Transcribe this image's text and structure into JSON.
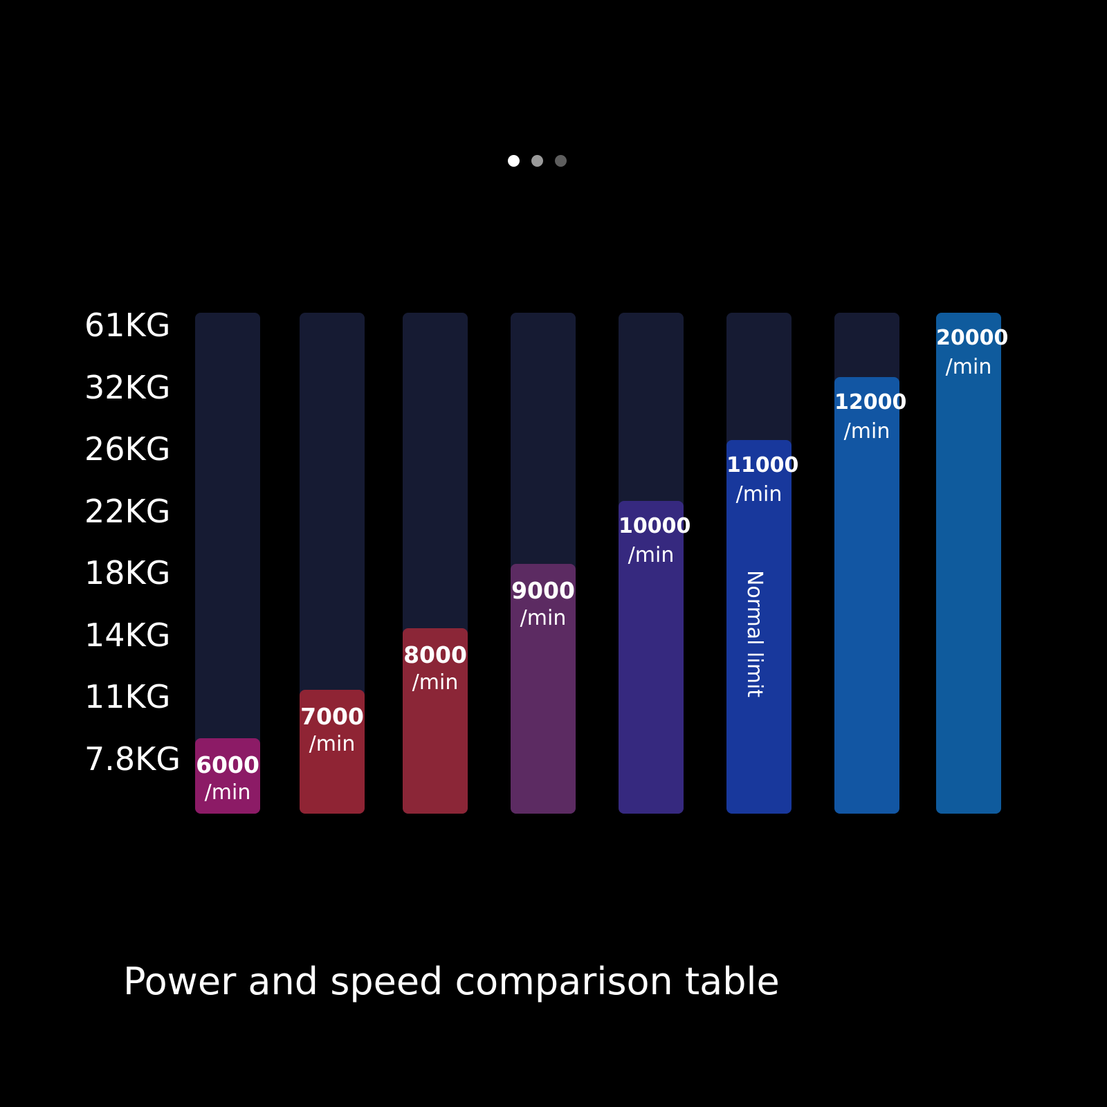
{
  "pager": {
    "dots": [
      {
        "name": "pager-dot-1",
        "color": "#ffffff"
      },
      {
        "name": "pager-dot-2",
        "color": "#9a9a9a"
      },
      {
        "name": "pager-dot-3",
        "color": "#5e5e5e"
      }
    ]
  },
  "caption": "Power and speed comparison table",
  "chart_data": {
    "type": "bar",
    "title": "",
    "xlabel": "",
    "ylabel": "",
    "y_tick_labels": [
      "61KG",
      "32KG",
      "26KG",
      "22KG",
      "18KG",
      "14KG",
      "11KG",
      "7.8KG"
    ],
    "categories": [
      "6000",
      "7000",
      "8000",
      "9000",
      "10000",
      "11000",
      "12000",
      "20000"
    ],
    "values": [
      6000,
      7000,
      8000,
      9000,
      10000,
      11000,
      12000,
      20000
    ],
    "value_unit": "/min",
    "fill_fraction": [
      0.15,
      0.247,
      0.37,
      0.499,
      0.624,
      0.746,
      0.871,
      1.0
    ],
    "colors": [
      "#8c1b66",
      "#8f2434",
      "#8b2637",
      "#5c2b62",
      "#36297f",
      "#18389c",
      "#1256a3",
      "#0f5b9d"
    ],
    "track_color": "#161b33",
    "annotation": {
      "bar_index": 5,
      "text": "Normal limit"
    }
  }
}
